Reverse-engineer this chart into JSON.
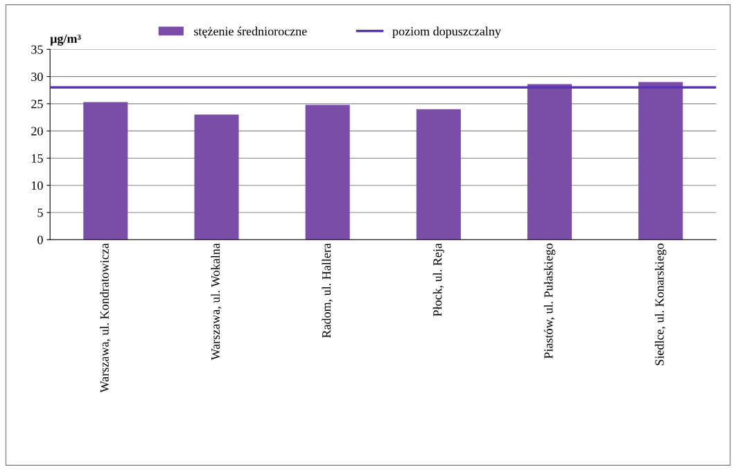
{
  "chart_data": {
    "type": "bar",
    "ylabel": "μg/m³",
    "categories": [
      "Warszawa, ul. Kondratowicza",
      "Warszawa, ul. Wokalna",
      "Radom, ul. Hallera",
      "Płock, ul. Reja",
      "Piastów, ul. Pułaskiego",
      "Siedlce, ul. Konarskiego"
    ],
    "series": [
      {
        "name": "stężenie średnioroczne",
        "color": "#7a4ea8",
        "values": [
          25.3,
          23.0,
          24.8,
          24.0,
          28.6,
          29.0
        ]
      }
    ],
    "ref_lines": [
      {
        "axis": "y",
        "value": 28,
        "label": "poziom dopuszczalny",
        "color": "#5533bb",
        "line_style": "solid"
      }
    ],
    "ylim": [
      0,
      35
    ],
    "yticks": [
      0,
      5,
      10,
      15,
      20,
      25,
      30,
      35
    ],
    "grid": "y",
    "legend": "top"
  }
}
